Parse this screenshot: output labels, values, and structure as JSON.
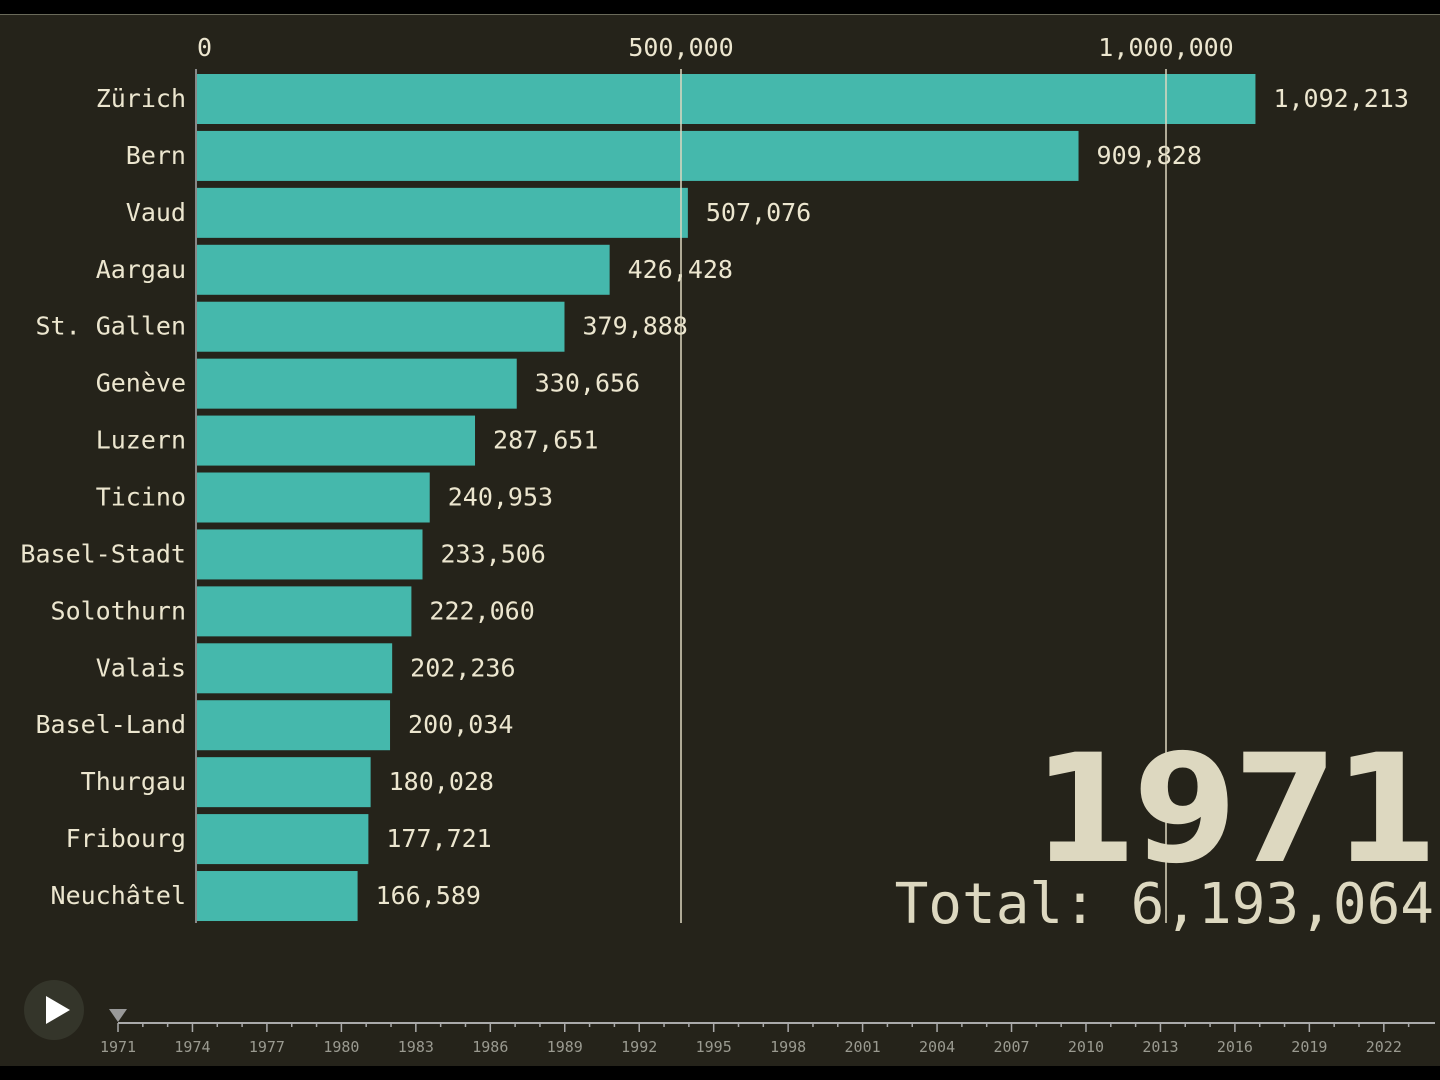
{
  "chart_data": {
    "type": "bar",
    "orientation": "horizontal",
    "title": "",
    "year": "1971",
    "total_label": "Total: 6,193,064",
    "categories": [
      "Zürich",
      "Bern",
      "Vaud",
      "Aargau",
      "St. Gallen",
      "Genève",
      "Luzern",
      "Ticino",
      "Basel-Stadt",
      "Solothurn",
      "Valais",
      "Basel-Land",
      "Thurgau",
      "Fribourg",
      "Neuchâtel"
    ],
    "values": [
      1092213,
      909828,
      507076,
      426428,
      379888,
      330656,
      287651,
      240953,
      233506,
      222060,
      202236,
      200034,
      180028,
      177721,
      166589
    ],
    "value_labels": [
      "1,092,213",
      "909,828",
      "507,076",
      "426,428",
      "379,888",
      "330,656",
      "287,651",
      "240,953",
      "233,506",
      "222,060",
      "202,236",
      "200,034",
      "180,028",
      "177,721",
      "166,589"
    ],
    "x_ticks": [
      0,
      500000,
      1000000
    ],
    "x_tick_labels": [
      "0",
      "500,000",
      "1,000,000"
    ],
    "xlim": [
      0,
      1100000
    ],
    "grid": true,
    "bar_color": "#45b8ac",
    "timeline": {
      "start": 1971,
      "end": 2023,
      "current": 1971,
      "labels": [
        "1971",
        "1974",
        "1977",
        "1980",
        "1983",
        "1986",
        "1989",
        "1992",
        "1995",
        "1998",
        "2001",
        "2004",
        "2007",
        "2010",
        "2013",
        "2016",
        "2019",
        "2022"
      ]
    },
    "play_icon": "play-icon"
  }
}
